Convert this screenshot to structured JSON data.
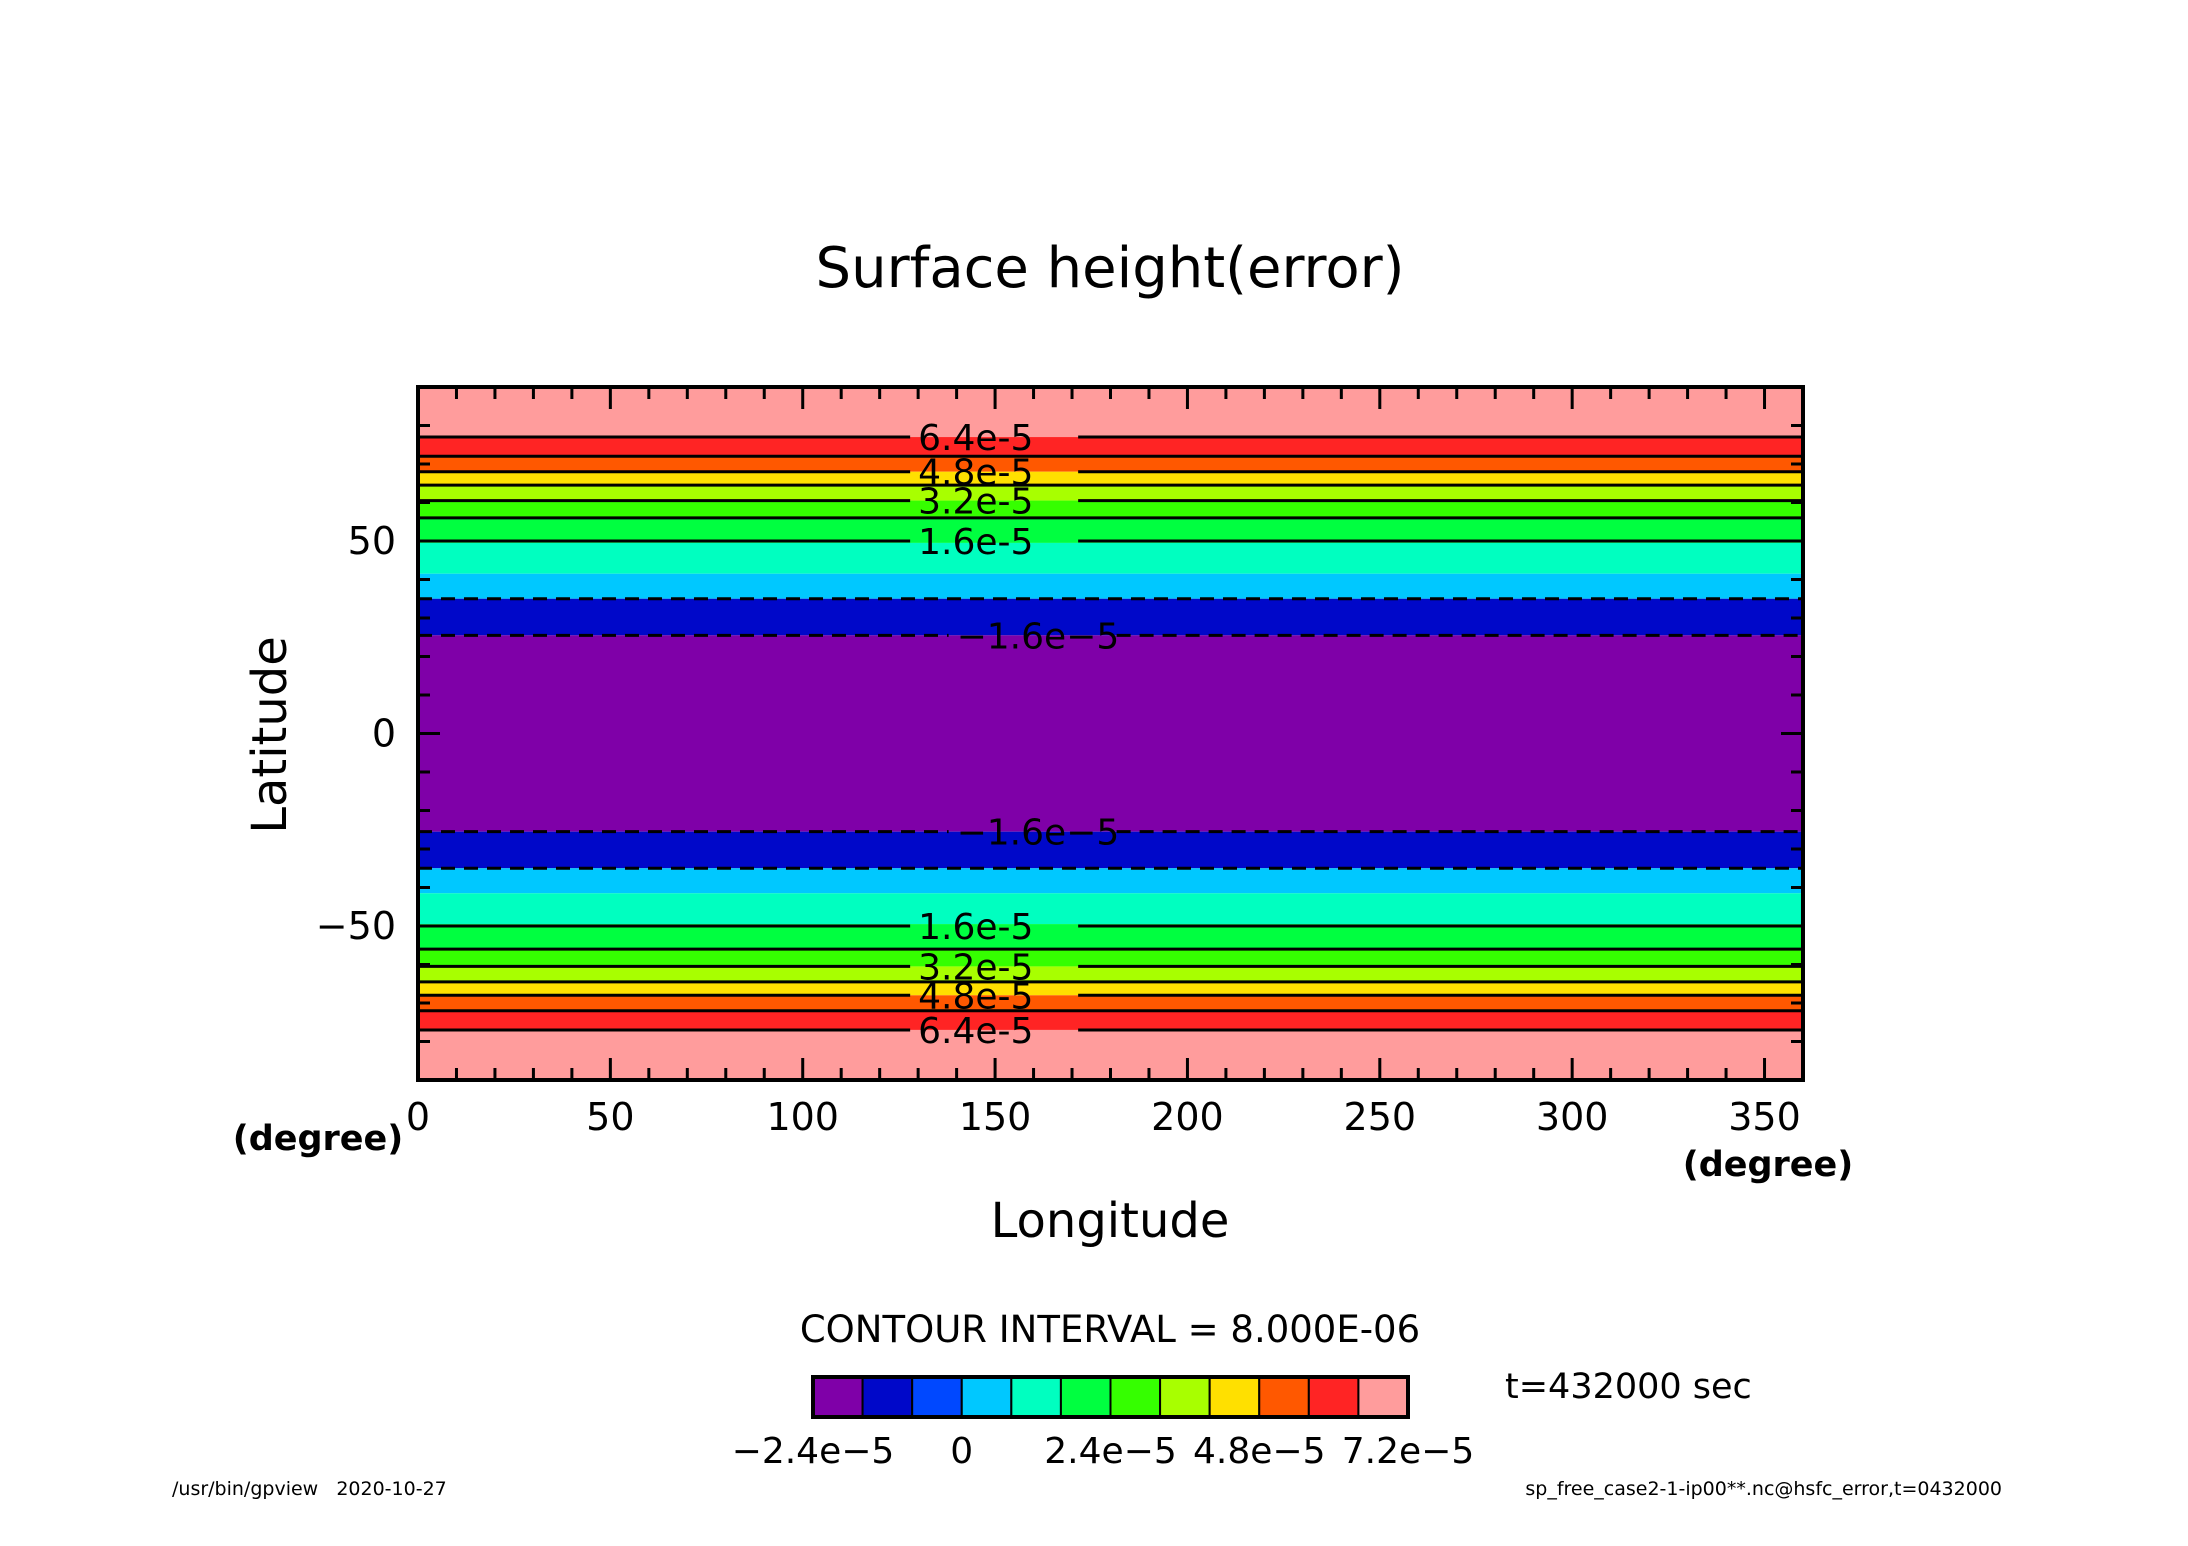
{
  "chart_data": {
    "type": "contour",
    "title": "Surface height(error)",
    "xlabel": "Longitude",
    "ylabel": "Latitude",
    "x_unit": "(degree)",
    "y_unit": "(degree)",
    "xlim": [
      0,
      360
    ],
    "ylim": [
      -90,
      90
    ],
    "x_ticks": [
      0,
      50,
      100,
      150,
      200,
      250,
      300,
      350
    ],
    "y_ticks": [
      -50,
      0,
      50
    ],
    "contour_interval_text": "CONTOUR INTERVAL = 8.000E-06",
    "time_text": "t=432000 sec",
    "levels": [
      -2.4e-05,
      -1.6e-05,
      -8e-06,
      0,
      8e-06,
      1.6e-05,
      2.4e-05,
      3.2e-05,
      4e-05,
      4.8e-05,
      5.6e-05,
      6.4e-05,
      7.2e-05
    ],
    "palette": [
      "#7f00a8",
      "#0008c9",
      "#0048ff",
      "#00c8ff",
      "#00ffc0",
      "#00ff40",
      "#35ff00",
      "#a8ff00",
      "#ffe000",
      "#ff5800",
      "#ff2424",
      "#ff9c9c"
    ],
    "bands": [
      {
        "lat_min": 77,
        "lat_max": 90,
        "class": 11
      },
      {
        "lat_min": 72,
        "lat_max": 77,
        "class": 10
      },
      {
        "lat_min": 68,
        "lat_max": 72,
        "class": 9
      },
      {
        "lat_min": 64.5,
        "lat_max": 68,
        "class": 8
      },
      {
        "lat_min": 60.5,
        "lat_max": 64.5,
        "class": 7
      },
      {
        "lat_min": 56,
        "lat_max": 60.5,
        "class": 6
      },
      {
        "lat_min": 49.5,
        "lat_max": 56,
        "class": 5
      },
      {
        "lat_min": 41.5,
        "lat_max": 49.5,
        "class": 4
      },
      {
        "lat_min": 35,
        "lat_max": 41.5,
        "class": 3
      },
      {
        "lat_min": 25.5,
        "lat_max": 35,
        "class": 1
      },
      {
        "lat_min": -25.5,
        "lat_max": 25.5,
        "class": 0
      },
      {
        "lat_min": -35,
        "lat_max": -25.5,
        "class": 1
      },
      {
        "lat_min": -41.5,
        "lat_max": -35,
        "class": 3
      },
      {
        "lat_min": -49.5,
        "lat_max": -41.5,
        "class": 4
      },
      {
        "lat_min": -56,
        "lat_max": -49.5,
        "class": 5
      },
      {
        "lat_min": -60.5,
        "lat_max": -56,
        "class": 6
      },
      {
        "lat_min": -64.5,
        "lat_max": -60.5,
        "class": 7
      },
      {
        "lat_min": -68,
        "lat_max": -64.5,
        "class": 8
      },
      {
        "lat_min": -72,
        "lat_max": -68,
        "class": 9
      },
      {
        "lat_min": -77,
        "lat_max": -72,
        "class": 10
      },
      {
        "lat_min": -90,
        "lat_max": -77,
        "class": 11
      }
    ],
    "contour_lines": [
      {
        "lat": 77,
        "style": "solid",
        "label": "6.4e-5",
        "label_lon": 130
      },
      {
        "lat": 72,
        "style": "solid"
      },
      {
        "lat": 68,
        "style": "solid",
        "label": "4.8e-5",
        "label_lon": 130
      },
      {
        "lat": 64.5,
        "style": "solid"
      },
      {
        "lat": 60.5,
        "style": "solid",
        "label": "3.2e-5",
        "label_lon": 130
      },
      {
        "lat": 56,
        "style": "solid"
      },
      {
        "lat": 50,
        "style": "solid",
        "label": "1.6e-5",
        "label_lon": 130
      },
      {
        "lat": 35,
        "style": "dashed"
      },
      {
        "lat": 25.5,
        "style": "dashed",
        "label": "−1.6e−5",
        "label_lon": 140
      },
      {
        "lat": -25.5,
        "style": "dashed",
        "label": "−1.6e−5",
        "label_lon": 140
      },
      {
        "lat": -35,
        "style": "dashed"
      },
      {
        "lat": -50,
        "style": "solid",
        "label": "1.6e-5",
        "label_lon": 130
      },
      {
        "lat": -56,
        "style": "solid"
      },
      {
        "lat": -60.5,
        "style": "solid",
        "label": "3.2e-5",
        "label_lon": 130
      },
      {
        "lat": -64.5,
        "style": "solid"
      },
      {
        "lat": -68,
        "style": "solid",
        "label": "4.8e-5",
        "label_lon": 130
      },
      {
        "lat": -72,
        "style": "solid"
      },
      {
        "lat": -77,
        "style": "solid",
        "label": "6.4e-5",
        "label_lon": 130
      }
    ],
    "colorbar_labels": [
      {
        "text": "−2.4e−5",
        "level_index": 0
      },
      {
        "text": "0",
        "level_index": 3
      },
      {
        "text": "2.4e−5",
        "level_index": 6
      },
      {
        "text": "4.8e−5",
        "level_index": 9
      },
      {
        "text": "7.2e−5",
        "level_index": 12
      }
    ]
  },
  "footer": {
    "left": "/usr/bin/gpview   2020-10-27",
    "right": "sp_free_case2-1-ip00**.nc@hsfc_error,t=0432000"
  }
}
